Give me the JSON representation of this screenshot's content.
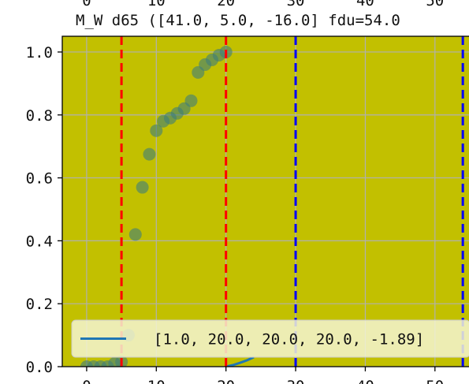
{
  "chart_data": {
    "type": "scatter",
    "title": "M_W d65 ([41.0, 5.0, -16.0] fdu=54.0",
    "xlabel": "",
    "ylabel": "",
    "xlim": [
      -3.5,
      55
    ],
    "ylim": [
      0.0,
      1.05
    ],
    "x_ticks": [
      0,
      10,
      20,
      30,
      40,
      50
    ],
    "y_ticks": [
      0.0,
      0.2,
      0.4,
      0.6,
      0.8,
      1.0
    ],
    "y_tick_labels": [
      "0.0",
      "0.2",
      "0.4",
      "0.6",
      "0.8",
      "1.0"
    ],
    "grid": true,
    "background_color": "#c2c000",
    "points": {
      "color": "#3d7d7a",
      "x": [
        0,
        1,
        2,
        3,
        4,
        5,
        6,
        7,
        8,
        9,
        10,
        11,
        12,
        13,
        14,
        15,
        16,
        17,
        18,
        19,
        20
      ],
      "y": [
        0.0,
        0.0,
        0.0,
        0.0,
        0.01,
        0.015,
        0.1,
        0.42,
        0.57,
        0.675,
        0.75,
        0.78,
        0.79,
        0.805,
        0.82,
        0.845,
        0.935,
        0.96,
        0.975,
        0.99,
        1.0
      ]
    },
    "series": [
      {
        "name": "[1.0, 20.0, 20.0, 20.0, -1.89]",
        "color": "#1f77b4",
        "x": [
          20,
          21,
          22,
          23,
          24
        ],
        "y": [
          0.0,
          0.005,
          0.012,
          0.02,
          0.03
        ]
      }
    ],
    "vlines": [
      {
        "x": 5,
        "color": "#ff0000"
      },
      {
        "x": 20,
        "color": "#ff0000"
      },
      {
        "x": 30,
        "color": "#0000ff"
      },
      {
        "x": 54,
        "color": "#0000ff"
      }
    ],
    "legend": {
      "position": "bottom-center",
      "background": "#f4f4d2"
    }
  }
}
